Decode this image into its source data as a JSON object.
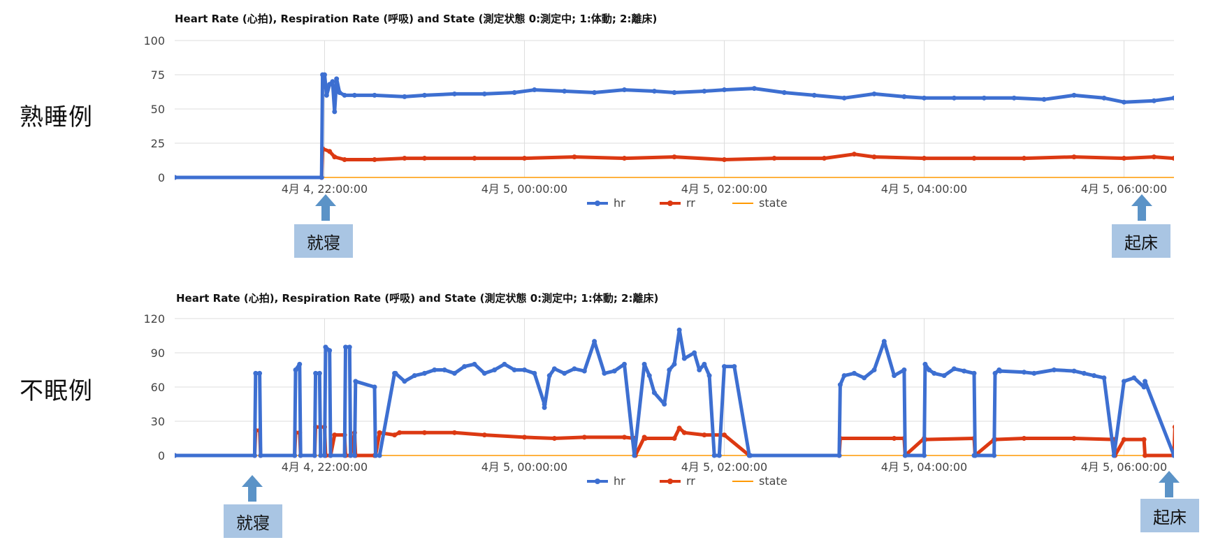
{
  "panels": [
    {
      "side_label": "熟睡例",
      "callouts": {
        "sleep": "就寝",
        "wake": "起床"
      }
    },
    {
      "side_label": "不眠例",
      "callouts": {
        "sleep": "就寝",
        "wake": "起床"
      }
    }
  ],
  "colors": {
    "hr": "#3d6fd1",
    "rr": "#dc3912",
    "state": "#ff9900",
    "grid": "#dddddd",
    "callout_bg": "#a9c5e3",
    "arrow": "#5b93c7"
  },
  "chart_data": [
    {
      "type": "line",
      "title": "Heart Rate (心拍), Respiration Rate (呼吸) and State (測定状態 0:測定中; 1:体動; 2:離床)",
      "xlabel": "",
      "ylabel": "",
      "x_range_hours": [
        20.5,
        30.5
      ],
      "x_ticks": [
        {
          "hour": 22,
          "label": "4月 4, 22:00:00"
        },
        {
          "hour": 24,
          "label": "4月 5, 00:00:00"
        },
        {
          "hour": 26,
          "label": "4月 5, 02:00:00"
        },
        {
          "hour": 28,
          "label": "4月 5, 04:00:00"
        },
        {
          "hour": 30,
          "label": "4月 5, 06:00:00"
        }
      ],
      "ylim": [
        0,
        100
      ],
      "y_ticks": [
        0,
        25,
        50,
        75,
        100
      ],
      "grid": true,
      "legend_position": "bottom",
      "series": [
        {
          "name": "hr",
          "x": [
            20.5,
            21.97,
            21.98,
            22.0,
            22.02,
            22.05,
            22.08,
            22.1,
            22.12,
            22.15,
            22.2,
            22.3,
            22.5,
            22.8,
            23.0,
            23.3,
            23.6,
            23.9,
            24.1,
            24.4,
            24.7,
            25.0,
            25.3,
            25.5,
            25.8,
            26.0,
            26.3,
            26.6,
            26.9,
            27.2,
            27.5,
            27.8,
            28.0,
            28.3,
            28.6,
            28.9,
            29.2,
            29.5,
            29.8,
            30.0,
            30.3,
            30.5,
            30.6,
            30.65,
            30.66,
            30.7,
            31.0
          ],
          "y": [
            0,
            0,
            75,
            75,
            60,
            68,
            70,
            48,
            72,
            62,
            60,
            60,
            60,
            59,
            60,
            61,
            61,
            62,
            64,
            63,
            62,
            64,
            63,
            62,
            63,
            64,
            65,
            62,
            60,
            58,
            61,
            59,
            58,
            58,
            58,
            58,
            57,
            60,
            58,
            55,
            56,
            58,
            56,
            62,
            64,
            0,
            0
          ]
        },
        {
          "name": "rr",
          "x": [
            20.5,
            21.97,
            21.98,
            22.05,
            22.1,
            22.2,
            22.5,
            22.8,
            23.0,
            23.5,
            24.0,
            24.5,
            25.0,
            25.5,
            26.0,
            26.5,
            27.0,
            27.3,
            27.5,
            28.0,
            28.5,
            29.0,
            29.5,
            30.0,
            30.3,
            30.5,
            30.6,
            30.65,
            30.66,
            30.7,
            31.0
          ],
          "y": [
            0,
            0,
            21,
            19,
            15,
            13,
            13,
            14,
            14,
            14,
            14,
            15,
            14,
            15,
            13,
            14,
            14,
            17,
            15,
            14,
            14,
            14,
            15,
            14,
            15,
            14,
            15,
            18,
            19,
            0,
            0
          ]
        },
        {
          "name": "state",
          "x": [
            20.5,
            31.0
          ],
          "y": [
            0,
            0
          ]
        }
      ]
    },
    {
      "type": "line",
      "title": "Heart Rate (心拍), Respiration Rate (呼吸) and State (測定状態 0:測定中; 1:体動; 2:離床)",
      "xlabel": "",
      "ylabel": "",
      "x_range_hours": [
        20.5,
        30.5
      ],
      "x_ticks": [
        {
          "hour": 22,
          "label": "4月 4, 22:00:00"
        },
        {
          "hour": 24,
          "label": "4月 5, 00:00:00"
        },
        {
          "hour": 26,
          "label": "4月 5, 02:00:00"
        },
        {
          "hour": 28,
          "label": "4月 5, 04:00:00"
        },
        {
          "hour": 30,
          "label": "4月 5, 06:00:00"
        }
      ],
      "ylim": [
        0,
        120
      ],
      "y_ticks": [
        0,
        30,
        60,
        90,
        120
      ],
      "grid": true,
      "legend_position": "bottom",
      "series": [
        {
          "name": "hr",
          "x": [
            20.5,
            21.3,
            21.31,
            21.35,
            21.36,
            21.7,
            21.71,
            21.75,
            21.76,
            21.9,
            21.91,
            21.95,
            21.96,
            22.0,
            22.01,
            22.05,
            22.06,
            22.2,
            22.21,
            22.25,
            22.26,
            22.3,
            22.31,
            22.5,
            22.51,
            22.55,
            22.7,
            22.71,
            22.8,
            22.9,
            23.0,
            23.1,
            23.2,
            23.3,
            23.4,
            23.5,
            23.6,
            23.7,
            23.8,
            23.9,
            24.0,
            24.1,
            24.2,
            24.2,
            24.25,
            24.3,
            24.4,
            24.5,
            24.6,
            24.7,
            24.8,
            24.9,
            25.0,
            25.1,
            25.2,
            25.25,
            25.3,
            25.4,
            25.45,
            25.5,
            25.55,
            25.6,
            25.7,
            25.75,
            25.8,
            25.85,
            25.9,
            25.95,
            26.0,
            26.1,
            26.25,
            26.26,
            27.15,
            27.16,
            27.2,
            27.3,
            27.4,
            27.5,
            27.6,
            27.7,
            27.8,
            27.81,
            28.0,
            28.01,
            28.05,
            28.1,
            28.2,
            28.3,
            28.4,
            28.5,
            28.51,
            28.5,
            28.7,
            28.71,
            28.75,
            28.76,
            29.0,
            29.1,
            29.3,
            29.5,
            29.6,
            29.7,
            29.8,
            29.9,
            30.0,
            30.1,
            30.2,
            30.21,
            30.5,
            30.6,
            30.7,
            30.71,
            30.8,
            30.9,
            30.91,
            31.0
          ],
          "y": [
            0,
            0,
            72,
            72,
            0,
            0,
            75,
            80,
            0,
            0,
            72,
            72,
            0,
            0,
            95,
            92,
            0,
            0,
            95,
            95,
            0,
            0,
            65,
            60,
            0,
            0,
            72,
            72,
            65,
            70,
            72,
            75,
            75,
            72,
            78,
            80,
            72,
            75,
            80,
            75,
            75,
            72,
            45,
            42,
            70,
            76,
            72,
            76,
            74,
            100,
            72,
            74,
            80,
            0,
            80,
            70,
            55,
            45,
            75,
            80,
            110,
            85,
            90,
            75,
            80,
            70,
            0,
            0,
            78,
            78,
            0,
            0,
            0,
            62,
            70,
            72,
            68,
            75,
            100,
            70,
            75,
            0,
            0,
            80,
            75,
            72,
            70,
            76,
            74,
            72,
            0,
            0,
            0,
            72,
            75,
            74,
            73,
            72,
            75,
            74,
            72,
            70,
            68,
            0,
            65,
            68,
            60,
            65,
            0,
            0,
            72,
            70,
            0,
            0,
            62,
            0
          ]
        },
        {
          "name": "rr",
          "x": [
            20.5,
            21.3,
            21.31,
            21.35,
            21.36,
            21.7,
            21.71,
            21.75,
            21.76,
            21.9,
            21.91,
            22.0,
            22.01,
            22.06,
            22.1,
            22.2,
            22.21,
            22.26,
            22.3,
            22.31,
            22.5,
            22.51,
            22.55,
            22.7,
            22.75,
            23.0,
            23.3,
            23.6,
            24.0,
            24.3,
            24.6,
            25.0,
            25.1,
            25.11,
            25.2,
            25.21,
            25.5,
            25.55,
            25.6,
            25.8,
            26.0,
            26.25,
            27.15,
            27.16,
            27.7,
            27.8,
            27.81,
            28.0,
            28.01,
            28.5,
            28.51,
            28.7,
            28.71,
            29.0,
            29.5,
            29.9,
            29.91,
            30.0,
            30.2,
            30.21,
            30.5,
            30.51,
            30.6,
            30.7,
            30.71,
            30.8,
            30.9,
            31.0
          ],
          "y": [
            0,
            0,
            22,
            22,
            0,
            0,
            20,
            20,
            0,
            0,
            25,
            25,
            0,
            0,
            18,
            18,
            0,
            0,
            20,
            0,
            0,
            0,
            20,
            18,
            20,
            20,
            20,
            18,
            16,
            15,
            16,
            16,
            15,
            0,
            16,
            15,
            15,
            24,
            20,
            18,
            18,
            0,
            0,
            15,
            15,
            15,
            0,
            15,
            14,
            15,
            0,
            14,
            14,
            15,
            15,
            14,
            0,
            14,
            14,
            0,
            0,
            25,
            20,
            22,
            0,
            0,
            24,
            0
          ]
        },
        {
          "name": "state",
          "x": [
            20.5,
            31.0
          ],
          "y": [
            0,
            0
          ]
        }
      ]
    }
  ]
}
